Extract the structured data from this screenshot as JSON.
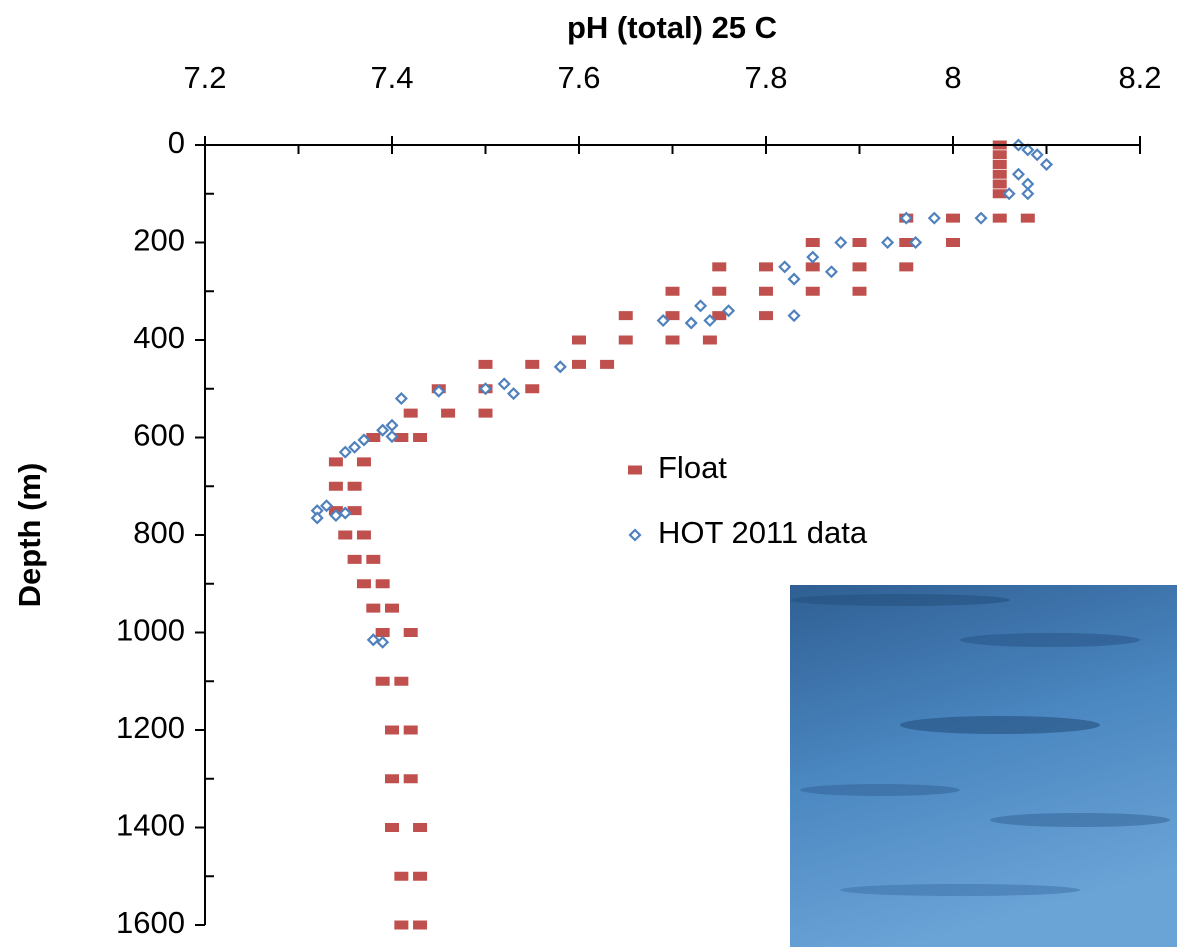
{
  "chart_data": {
    "type": "scatter",
    "x_label": "pH (total) 25 C",
    "y_label": "Depth (m)",
    "xlim": [
      7.2,
      8.2
    ],
    "xticks": [
      7.2,
      7.4,
      7.6,
      7.8,
      8,
      8.2
    ],
    "x_minor_ticks": [
      7.3,
      7.5,
      7.7,
      7.9,
      8.1
    ],
    "ylim": [
      0,
      1600
    ],
    "y_reversed": true,
    "yticks": [
      0,
      200,
      400,
      600,
      800,
      1000,
      1200,
      1400,
      1600
    ],
    "y_minor_ticks": [
      100,
      300,
      500,
      700,
      900,
      1100,
      1300,
      1500
    ],
    "x_axis_position": "top",
    "series": [
      {
        "name": "Float",
        "color": "#c0504d",
        "marker": "square",
        "x": [
          8.05,
          8.05,
          8.05,
          8.05,
          8.05,
          8.05,
          7.95,
          8.0,
          8.05,
          8.08,
          7.85,
          7.9,
          7.95,
          8.0,
          7.75,
          7.8,
          7.85,
          7.9,
          7.95,
          7.7,
          7.75,
          7.8,
          7.85,
          7.9,
          7.65,
          7.7,
          7.75,
          7.8,
          7.6,
          7.65,
          7.7,
          7.74,
          7.5,
          7.55,
          7.6,
          7.63,
          7.45,
          7.5,
          7.55,
          7.42,
          7.46,
          7.5,
          7.38,
          7.41,
          7.43,
          7.34,
          7.37,
          7.34,
          7.36,
          7.34,
          7.36,
          7.35,
          7.37,
          7.36,
          7.38,
          7.37,
          7.39,
          7.38,
          7.4,
          7.39,
          7.42,
          7.39,
          7.41,
          7.4,
          7.42,
          7.4,
          7.42,
          7.4,
          7.43,
          7.41,
          7.43,
          7.41,
          7.43
        ],
        "y": [
          0,
          20,
          40,
          60,
          80,
          100,
          150,
          150,
          150,
          150,
          200,
          200,
          200,
          200,
          250,
          250,
          250,
          250,
          250,
          300,
          300,
          300,
          300,
          300,
          350,
          350,
          350,
          350,
          400,
          400,
          400,
          400,
          450,
          450,
          450,
          450,
          500,
          500,
          500,
          550,
          550,
          550,
          600,
          600,
          600,
          650,
          650,
          700,
          700,
          750,
          750,
          800,
          800,
          850,
          850,
          900,
          900,
          950,
          950,
          1000,
          1000,
          1100,
          1100,
          1200,
          1200,
          1300,
          1300,
          1400,
          1400,
          1500,
          1500,
          1600,
          1600
        ]
      },
      {
        "name": "HOT 2011 data",
        "color": "#4f81bd",
        "marker": "diamond",
        "x": [
          8.07,
          8.08,
          8.09,
          8.1,
          8.07,
          8.08,
          8.06,
          8.08,
          7.95,
          7.98,
          8.03,
          7.88,
          7.93,
          7.96,
          7.85,
          7.82,
          7.87,
          7.83,
          7.73,
          7.76,
          7.83,
          7.69,
          7.72,
          7.74,
          7.58,
          7.52,
          7.5,
          7.53,
          7.45,
          7.41,
          7.4,
          7.39,
          7.4,
          7.37,
          7.36,
          7.35,
          7.33,
          7.32,
          7.32,
          7.34,
          7.35,
          7.38,
          7.39
        ],
        "y": [
          0,
          10,
          20,
          40,
          60,
          80,
          100,
          100,
          150,
          150,
          150,
          200,
          200,
          200,
          230,
          250,
          260,
          275,
          330,
          340,
          350,
          360,
          365,
          360,
          455,
          490,
          500,
          510,
          505,
          520,
          575,
          585,
          598,
          605,
          620,
          630,
          740,
          750,
          765,
          760,
          755,
          1015,
          1020
        ]
      }
    ]
  }
}
